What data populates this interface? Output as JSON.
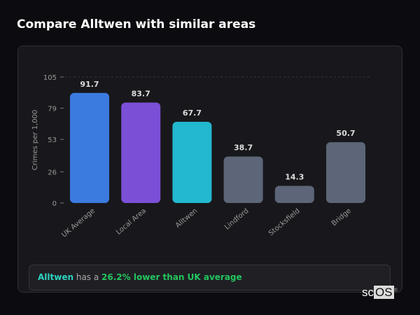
{
  "title": "Compare Alltwen with similar areas",
  "summary": {
    "area": "Alltwen",
    "middle": " has a ",
    "comparison": "26.2% lower than UK average"
  },
  "logo": "scOS",
  "chart_data": {
    "type": "bar",
    "categories": [
      "UK Average",
      "Local Area",
      "Alltwen",
      "Lindford",
      "Stocksfield",
      "Bridge"
    ],
    "values": [
      91.7,
      83.7,
      67.7,
      38.7,
      14.3,
      50.7
    ],
    "value_labels": [
      "91.7",
      "83.7",
      "67.7",
      "38.7",
      "14.3",
      "50.7"
    ],
    "colors": [
      "#3b7be0",
      "#7b4fd6",
      "#22b8cf",
      "#5c6678",
      "#5c6678",
      "#5c6678"
    ],
    "ylabel": "Crimes per 1,000",
    "xlabel": "",
    "ylim": [
      0,
      105
    ],
    "yticks": [
      0,
      26,
      53,
      79,
      105
    ],
    "grid": true,
    "legend": "none"
  }
}
